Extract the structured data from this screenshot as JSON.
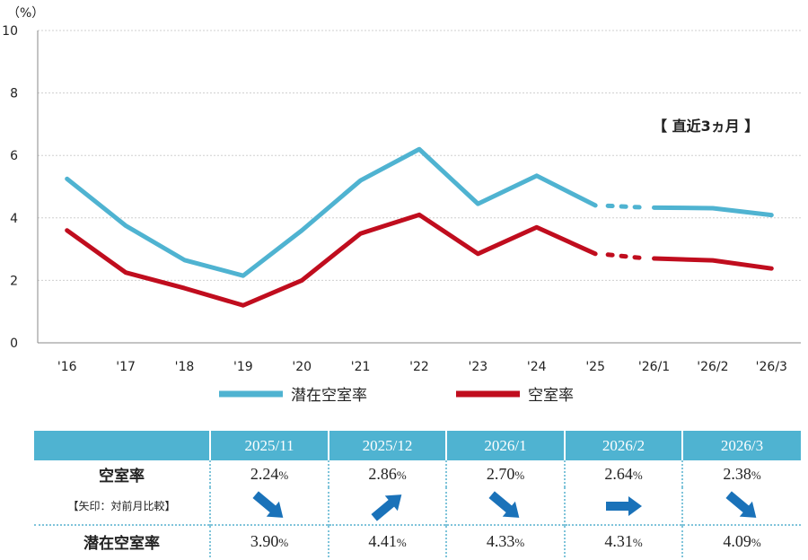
{
  "colors": {
    "potential": "#4fb3d1",
    "vacancy": "#c00d1e",
    "header_bg": "#4fb3d1",
    "arrow": "#1a72b9"
  },
  "chart_data": {
    "type": "line",
    "y_unit_label": "（%）",
    "ylim": [
      0,
      10
    ],
    "yticks": [
      "0",
      "2",
      "4",
      "6",
      "8",
      "10"
    ],
    "categories": [
      "'16",
      "'17",
      "'18",
      "'19",
      "'20",
      "'21",
      "'22",
      "'23",
      "'24",
      "'25",
      "'26/1",
      "'26/2",
      "'26/3"
    ],
    "annotation": "【 直近3ヵ月 】",
    "series": [
      {
        "name": "潜在空室率",
        "color": "#4fb3d1",
        "values": [
          5.25,
          3.75,
          2.65,
          2.15,
          3.6,
          5.2,
          6.2,
          4.45,
          5.35,
          4.4,
          4.33,
          4.31,
          4.09
        ]
      },
      {
        "name": "空室率",
        "color": "#c00d1e",
        "values": [
          3.6,
          2.25,
          1.75,
          1.2,
          2.0,
          3.5,
          4.1,
          2.85,
          3.7,
          2.85,
          2.7,
          2.64,
          2.38
        ]
      }
    ]
  },
  "table": {
    "months": [
      "2025/11",
      "2025/12",
      "2026/1",
      "2026/2",
      "2026/3"
    ],
    "vacancy_label": "空室率",
    "arrow_note": "【矢印：対前月比較】",
    "potential_label": "潜在空室率",
    "unit": "%",
    "vacancy": [
      "2.24",
      "2.86",
      "2.70",
      "2.64",
      "2.38"
    ],
    "arrows": [
      "down",
      "up",
      "down",
      "flat",
      "down"
    ],
    "potential": [
      "3.90",
      "4.41",
      "4.33",
      "4.31",
      "4.09"
    ]
  }
}
